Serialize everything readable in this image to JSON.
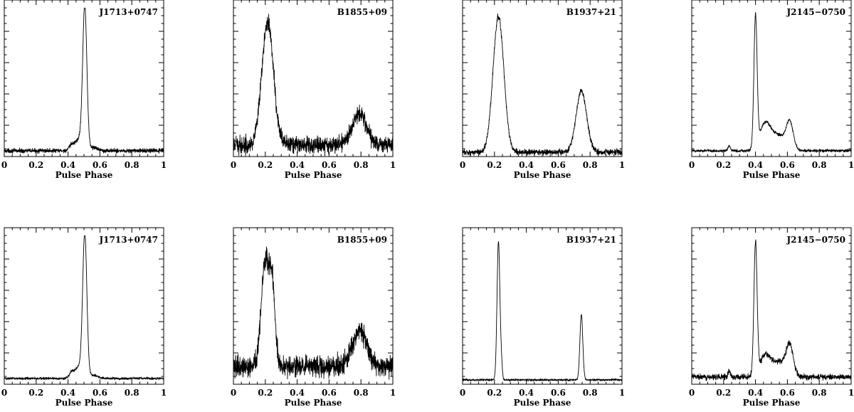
{
  "chart_data": [
    {
      "type": "line",
      "panel": "top-1",
      "title": "J1713+0747",
      "xlabel": "Pulse Phase",
      "xlim": [
        0,
        1
      ],
      "xticks": [
        "0",
        "0.2",
        "0.4",
        "0.6",
        "0.8",
        "1"
      ],
      "base": 0.04,
      "noise": 0.01,
      "components": [
        {
          "center": 0.505,
          "width": 0.013,
          "amp": 0.96
        },
        {
          "center": 0.47,
          "width": 0.03,
          "amp": 0.08
        },
        {
          "center": 0.42,
          "width": 0.012,
          "amp": 0.025
        },
        {
          "center": 0.56,
          "width": 0.03,
          "amp": 0.02
        }
      ]
    },
    {
      "type": "line",
      "panel": "top-2",
      "title": "B1855+09",
      "xlabel": "Pulse Phase",
      "xlim": [
        0,
        1
      ],
      "xticks": [
        "0",
        "0.2",
        "0.4",
        "0.6",
        "0.8",
        "1"
      ],
      "base": 0.08,
      "noise": 0.04,
      "components": [
        {
          "center": 0.215,
          "width": 0.036,
          "amp": 0.85
        },
        {
          "center": 0.79,
          "width": 0.045,
          "amp": 0.22
        }
      ]
    },
    {
      "type": "line",
      "panel": "top-3",
      "title": "B1937+21",
      "xlabel": "Pulse Phase",
      "xlim": [
        0,
        1
      ],
      "xticks": [
        "0",
        "0.2",
        "0.4",
        "0.6",
        "0.8",
        "1"
      ],
      "base": 0.03,
      "noise": 0.014,
      "components": [
        {
          "center": 0.225,
          "width": 0.034,
          "amp": 0.93
        },
        {
          "center": 0.745,
          "width": 0.033,
          "amp": 0.42
        }
      ]
    },
    {
      "type": "line",
      "panel": "top-4",
      "title": "J2145−0750",
      "xlabel": "Pulse Phase",
      "xlim": [
        0,
        1
      ],
      "xticks": [
        "0",
        "0.2",
        "0.4",
        "0.6",
        "0.8",
        "1"
      ],
      "base": 0.04,
      "noise": 0.007,
      "components": [
        {
          "center": 0.4,
          "width": 0.01,
          "amp": 0.9
        },
        {
          "center": 0.46,
          "width": 0.035,
          "amp": 0.18
        },
        {
          "center": 0.615,
          "width": 0.022,
          "amp": 0.18
        },
        {
          "center": 0.545,
          "width": 0.045,
          "amp": 0.1
        },
        {
          "center": 0.235,
          "width": 0.008,
          "amp": 0.03
        }
      ]
    },
    {
      "type": "line",
      "panel": "bottom-1",
      "title": "J1713+0747",
      "xlabel": "Pulse Phase",
      "xlim": [
        0,
        1
      ],
      "xticks": [
        "0",
        "0.2",
        "0.4",
        "0.6",
        "0.8",
        "1"
      ],
      "base": 0.04,
      "noise": 0.006,
      "components": [
        {
          "center": 0.505,
          "width": 0.013,
          "amp": 0.96
        },
        {
          "center": 0.47,
          "width": 0.03,
          "amp": 0.08
        },
        {
          "center": 0.42,
          "width": 0.012,
          "amp": 0.03
        },
        {
          "center": 0.56,
          "width": 0.03,
          "amp": 0.02
        }
      ]
    },
    {
      "type": "line",
      "panel": "bottom-2",
      "title": "B1855+09",
      "xlabel": "Pulse Phase",
      "xlim": [
        0,
        1
      ],
      "xticks": [
        "0",
        "0.2",
        "0.4",
        "0.6",
        "0.8",
        "1"
      ],
      "base": 0.12,
      "noise": 0.05,
      "components": [
        {
          "center": 0.2,
          "width": 0.025,
          "amp": 0.72
        },
        {
          "center": 0.245,
          "width": 0.018,
          "amp": 0.5
        },
        {
          "center": 0.79,
          "width": 0.045,
          "amp": 0.25
        }
      ]
    },
    {
      "type": "line",
      "panel": "bottom-3",
      "title": "B1937+21",
      "xlabel": "Pulse Phase",
      "xlim": [
        0,
        1
      ],
      "xticks": [
        "0",
        "0.2",
        "0.4",
        "0.6",
        "0.8",
        "1"
      ],
      "base": 0.03,
      "noise": 0.005,
      "components": [
        {
          "center": 0.225,
          "width": 0.009,
          "amp": 0.95
        },
        {
          "center": 0.243,
          "width": 0.006,
          "amp": 0.1
        },
        {
          "center": 0.745,
          "width": 0.009,
          "amp": 0.45
        }
      ]
    },
    {
      "type": "line",
      "panel": "bottom-4",
      "title": "J2145−0750",
      "xlabel": "Pulse Phase",
      "xlim": [
        0,
        1
      ],
      "xticks": [
        "0",
        "0.2",
        "0.4",
        "0.6",
        "0.8",
        "1"
      ],
      "base": 0.05,
      "noise": 0.013,
      "components": [
        {
          "center": 0.4,
          "width": 0.01,
          "amp": 0.9
        },
        {
          "center": 0.46,
          "width": 0.035,
          "amp": 0.14
        },
        {
          "center": 0.615,
          "width": 0.022,
          "amp": 0.2
        },
        {
          "center": 0.55,
          "width": 0.045,
          "amp": 0.1
        },
        {
          "center": 0.235,
          "width": 0.008,
          "amp": 0.04
        }
      ]
    }
  ]
}
